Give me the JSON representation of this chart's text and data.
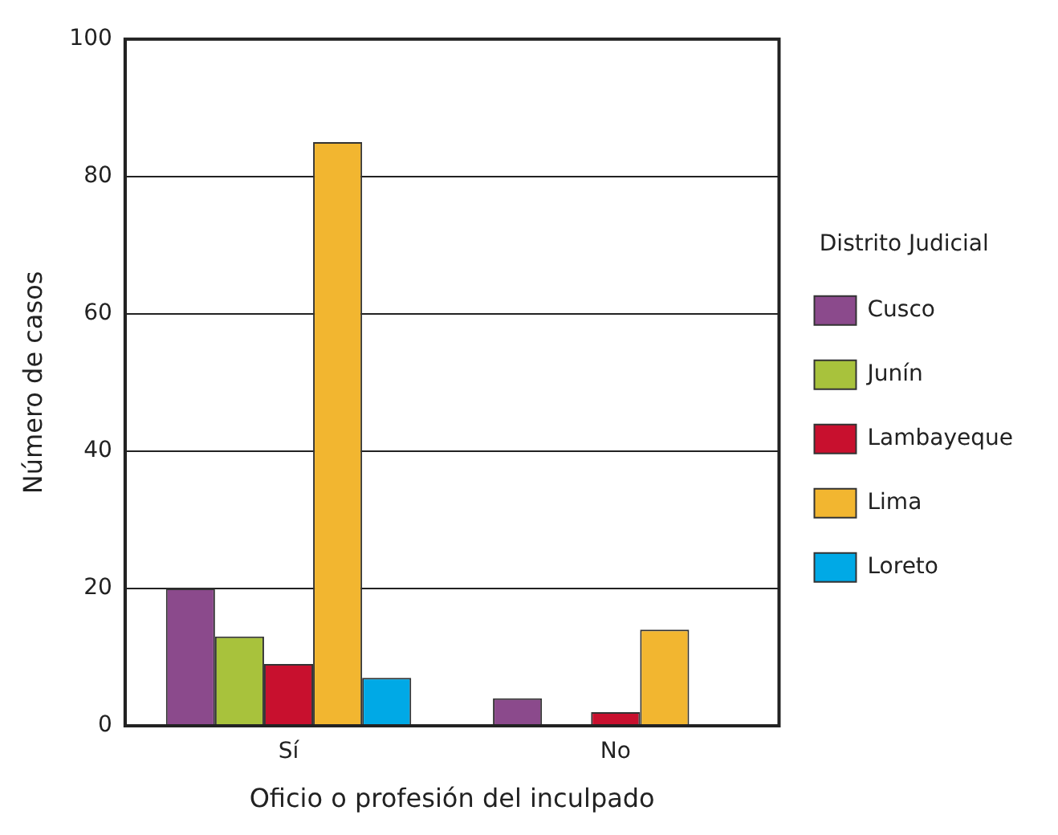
{
  "chart_data": {
    "type": "bar",
    "xlabel": "Oficio o profesión del inculpado",
    "ylabel": "Número de casos",
    "legend_title": "Distrito Judicial",
    "categories": [
      "Sí",
      "No"
    ],
    "series": [
      {
        "name": "Cusco",
        "color": "#8b4a8c",
        "values": [
          20,
          4
        ]
      },
      {
        "name": "Junín",
        "color": "#a8c23c",
        "values": [
          13,
          0
        ]
      },
      {
        "name": "Lambayeque",
        "color": "#c8102e",
        "values": [
          9,
          2
        ]
      },
      {
        "name": "Lima",
        "color": "#f2b630",
        "values": [
          85,
          14
        ]
      },
      {
        "name": "Loreto",
        "color": "#00a9e6",
        "values": [
          7,
          0
        ]
      }
    ],
    "ylim": [
      0,
      100
    ],
    "yticks": [
      0,
      20,
      40,
      60,
      80,
      100
    ],
    "grid": "y",
    "legend": "right"
  }
}
